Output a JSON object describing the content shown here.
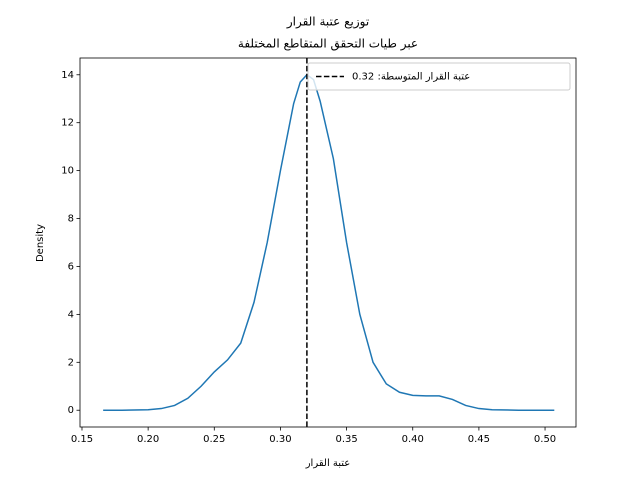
{
  "chart_data": {
    "type": "line",
    "title": "توزيع عتبة القرار",
    "subtitle": "عبر طيات التحقق المتقاطع المختلفة",
    "x_label": "عتبة القرار",
    "y_label": "Density",
    "x": [
      0.166,
      0.18,
      0.2,
      0.21,
      0.22,
      0.23,
      0.24,
      0.25,
      0.26,
      0.27,
      0.28,
      0.29,
      0.3,
      0.31,
      0.315,
      0.32,
      0.325,
      0.33,
      0.34,
      0.35,
      0.36,
      0.37,
      0.38,
      0.39,
      0.4,
      0.41,
      0.42,
      0.43,
      0.44,
      0.45,
      0.46,
      0.48,
      0.507
    ],
    "series": [
      {
        "color": "#1f77b4",
        "values": [
          0,
          0,
          0.02,
          0.07,
          0.2,
          0.5,
          1.0,
          1.6,
          2.1,
          2.8,
          4.5,
          7.0,
          10.0,
          12.8,
          13.7,
          14.0,
          13.8,
          12.9,
          10.5,
          7.0,
          4.0,
          2.0,
          1.1,
          0.75,
          0.62,
          0.6,
          0.6,
          0.45,
          0.2,
          0.07,
          0.02,
          0,
          0
        ]
      }
    ],
    "reference_line": {
      "x": 0.32,
      "name": "عتبة القرار المتوسطة: 0.32",
      "color": "#000000",
      "dashed": true
    },
    "xlim": [
      0.1485,
      0.5234
    ],
    "ylim": [
      -0.7,
      14.7
    ],
    "xticks": [
      0.15,
      {
        "value": 0.2,
        "label": "0.20"
      },
      0.25,
      {
        "value": 0.3,
        "label": "0.30"
      },
      0.35,
      {
        "value": 0.4,
        "label": "0.40"
      },
      0.45,
      {
        "value": 0.5,
        "label": "0.50"
      }
    ],
    "yticks": [
      0,
      2,
      4,
      6,
      8,
      10,
      12,
      14
    ],
    "legend": "upper right",
    "grid": false
  }
}
